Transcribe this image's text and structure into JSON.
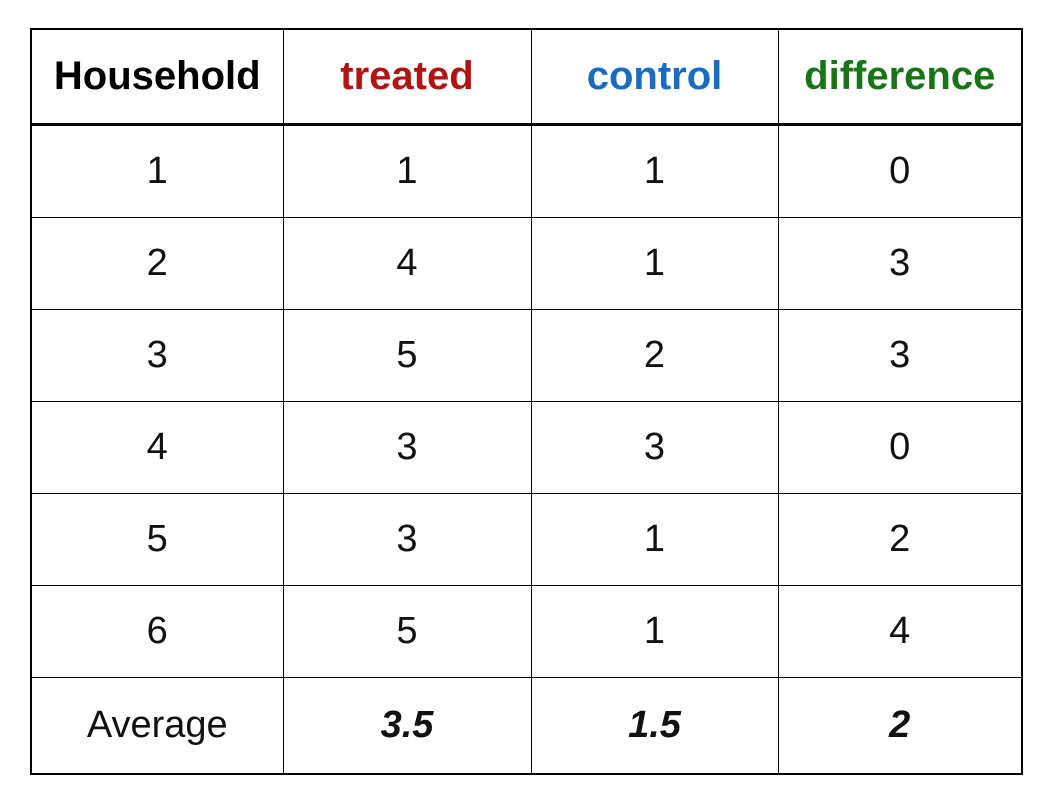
{
  "colors": {
    "household_header": "#000000",
    "treated_header": "#b01511",
    "control_header": "#1a6bc2",
    "difference_header": "#177517",
    "body_text": "#111111",
    "grid_border": "#000000",
    "background": "#ffffff"
  },
  "chart_data": {
    "type": "table",
    "title": "",
    "columns": [
      "Household",
      "treated",
      "control",
      "difference"
    ],
    "rows": [
      [
        1,
        1,
        1,
        0
      ],
      [
        2,
        4,
        1,
        3
      ],
      [
        3,
        5,
        2,
        3
      ],
      [
        4,
        3,
        3,
        0
      ],
      [
        5,
        3,
        1,
        2
      ],
      [
        6,
        5,
        1,
        4
      ]
    ],
    "footer": [
      "Average",
      3.5,
      1.5,
      2
    ]
  }
}
